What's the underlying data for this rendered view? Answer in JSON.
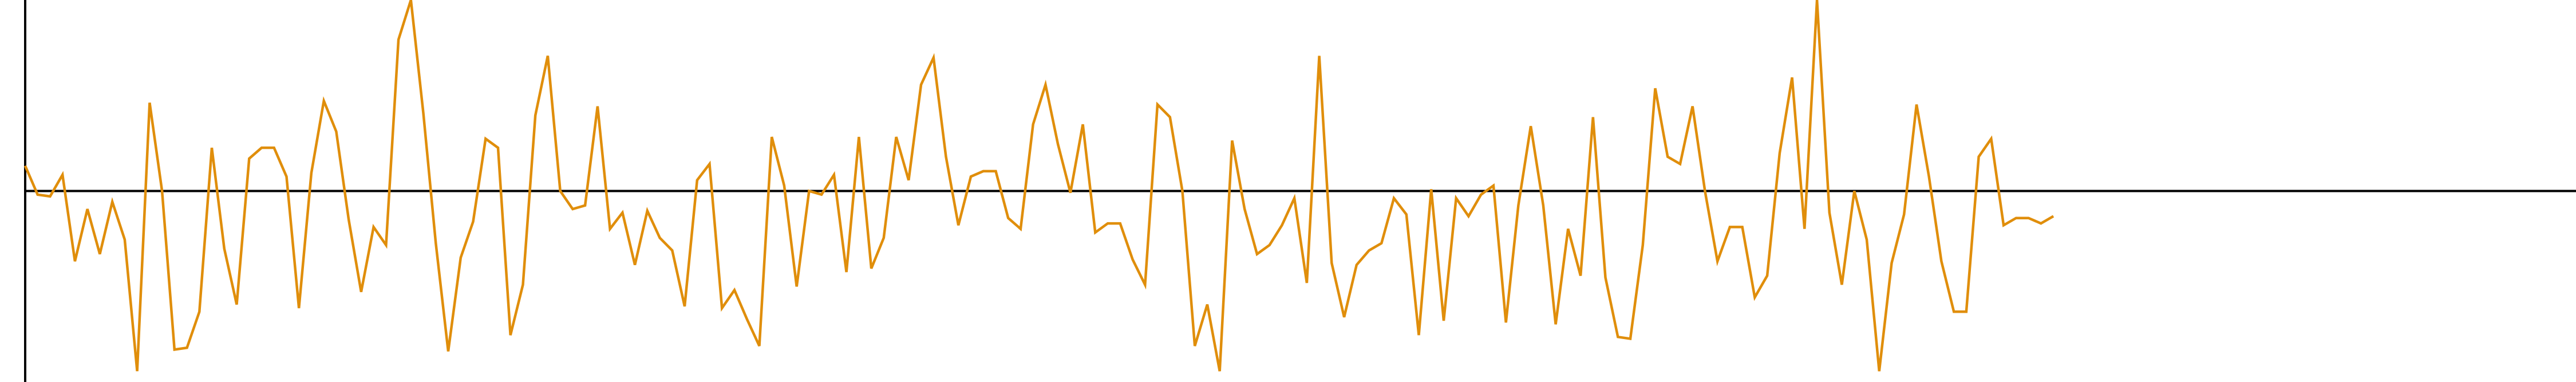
{
  "chart_data": {
    "type": "line",
    "title": "",
    "xlabel": "",
    "ylabel": "",
    "grid": false,
    "legend": "none",
    "line_color": "#e08e0b",
    "axis_color": "#000000",
    "ylim": [
      -1.06,
      1.06
    ],
    "xlim": [
      0,
      205
    ],
    "series": [
      {
        "values": [
          0.14,
          -0.02,
          -0.03,
          0.09,
          -0.39,
          -0.1,
          -0.35,
          -0.06,
          -0.27,
          -1.0,
          0.49,
          0.0,
          -0.88,
          -0.87,
          -0.67,
          0.24,
          -0.32,
          -0.63,
          0.18,
          0.24,
          0.24,
          0.08,
          -0.65,
          0.1,
          0.5,
          0.33,
          -0.16,
          -0.56,
          -0.2,
          -0.3,
          0.84,
          1.06,
          0.43,
          -0.29,
          -0.89,
          -0.37,
          -0.17,
          0.29,
          0.24,
          -0.8,
          -0.52,
          0.42,
          0.75,
          0.0,
          -0.1,
          -0.08,
          0.47,
          -0.21,
          -0.12,
          -0.41,
          -0.11,
          -0.26,
          -0.33,
          -0.64,
          0.06,
          0.15,
          -0.65,
          -0.55,
          -0.71,
          -0.86,
          0.3,
          0.03,
          -0.53,
          0.0,
          -0.02,
          0.09,
          -0.45,
          0.3,
          -0.43,
          -0.26,
          0.3,
          0.06,
          0.59,
          0.74,
          0.19,
          -0.19,
          0.08,
          0.11,
          0.11,
          -0.15,
          -0.21,
          0.37,
          0.59,
          0.26,
          -0.01,
          0.37,
          -0.23,
          -0.18,
          -0.18,
          -0.38,
          -0.52,
          0.48,
          0.41,
          0.0,
          -0.86,
          -0.63,
          -1.0,
          0.28,
          -0.1,
          -0.35,
          -0.3,
          -0.19,
          -0.04,
          -0.51,
          0.75,
          -0.4,
          -0.7,
          -0.41,
          -0.33,
          -0.29,
          -0.04,
          -0.13,
          -0.8,
          0.01,
          -0.72,
          -0.04,
          -0.14,
          -0.02,
          0.03,
          -0.73,
          -0.08,
          0.36,
          -0.08,
          -0.74,
          -0.21,
          -0.47,
          0.41,
          -0.48,
          -0.81,
          -0.82,
          -0.3,
          0.57,
          0.19,
          0.15,
          0.47,
          0.0,
          -0.39,
          -0.2,
          -0.2,
          -0.59,
          -0.47,
          0.21,
          0.63,
          -0.21,
          1.06,
          -0.12,
          -0.52,
          0.0,
          -0.27,
          -1.0,
          -0.4,
          -0.13,
          0.48,
          0.08,
          -0.39,
          -0.67,
          -0.67,
          0.19,
          0.29,
          -0.19,
          -0.15,
          -0.15,
          -0.18,
          -0.14
        ]
      }
    ]
  }
}
